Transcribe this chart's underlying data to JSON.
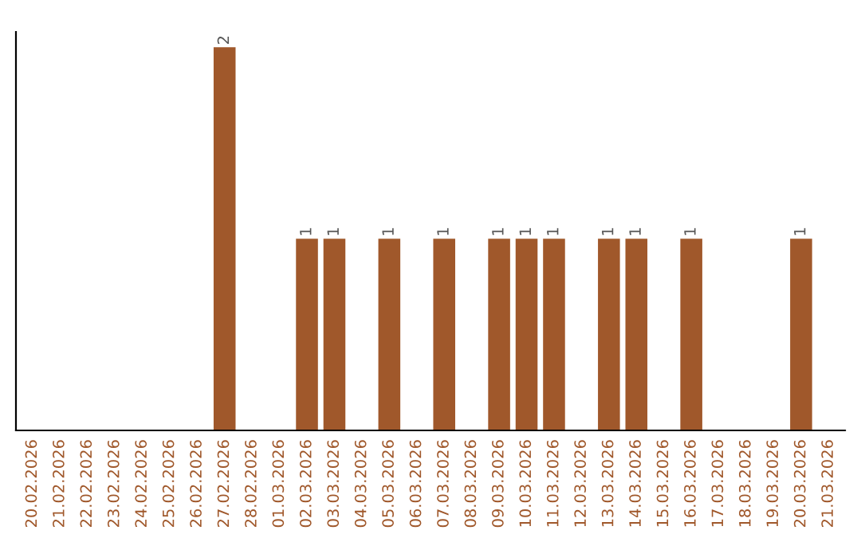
{
  "chart_data": {
    "type": "bar",
    "categories": [
      "20.02.2026",
      "21.02.2026",
      "22.02.2026",
      "23.02.2026",
      "24.02.2026",
      "25.02.2026",
      "26.02.2026",
      "27.02.2026",
      "28.02.2026",
      "01.03.2026",
      "02.03.2026",
      "03.03.2026",
      "04.03.2026",
      "05.03.2026",
      "06.03.2026",
      "07.03.2026",
      "08.03.2026",
      "09.03.2026",
      "10.03.2026",
      "11.03.2026",
      "12.03.2026",
      "13.03.2026",
      "14.03.2026",
      "15.03.2026",
      "16.03.2026",
      "17.03.2026",
      "18.03.2026",
      "19.03.2026",
      "20.03.2026",
      "21.03.2026"
    ],
    "values": [
      0,
      0,
      0,
      0,
      0,
      0,
      0,
      2,
      0,
      0,
      1,
      1,
      0,
      1,
      0,
      1,
      0,
      1,
      1,
      1,
      0,
      1,
      1,
      0,
      1,
      0,
      0,
      0,
      1,
      0
    ],
    "color": "#a0582b",
    "value_labels": [
      null,
      null,
      null,
      null,
      null,
      null,
      null,
      "2",
      null,
      null,
      "1",
      "1",
      null,
      "1",
      null,
      "1",
      null,
      "1",
      "1",
      "1",
      null,
      "1",
      "1",
      null,
      "1",
      null,
      null,
      null,
      "1",
      null
    ],
    "ylim": [
      0,
      2.0
    ],
    "tick_labels": "x",
    "grid": false,
    "legend": false
  }
}
